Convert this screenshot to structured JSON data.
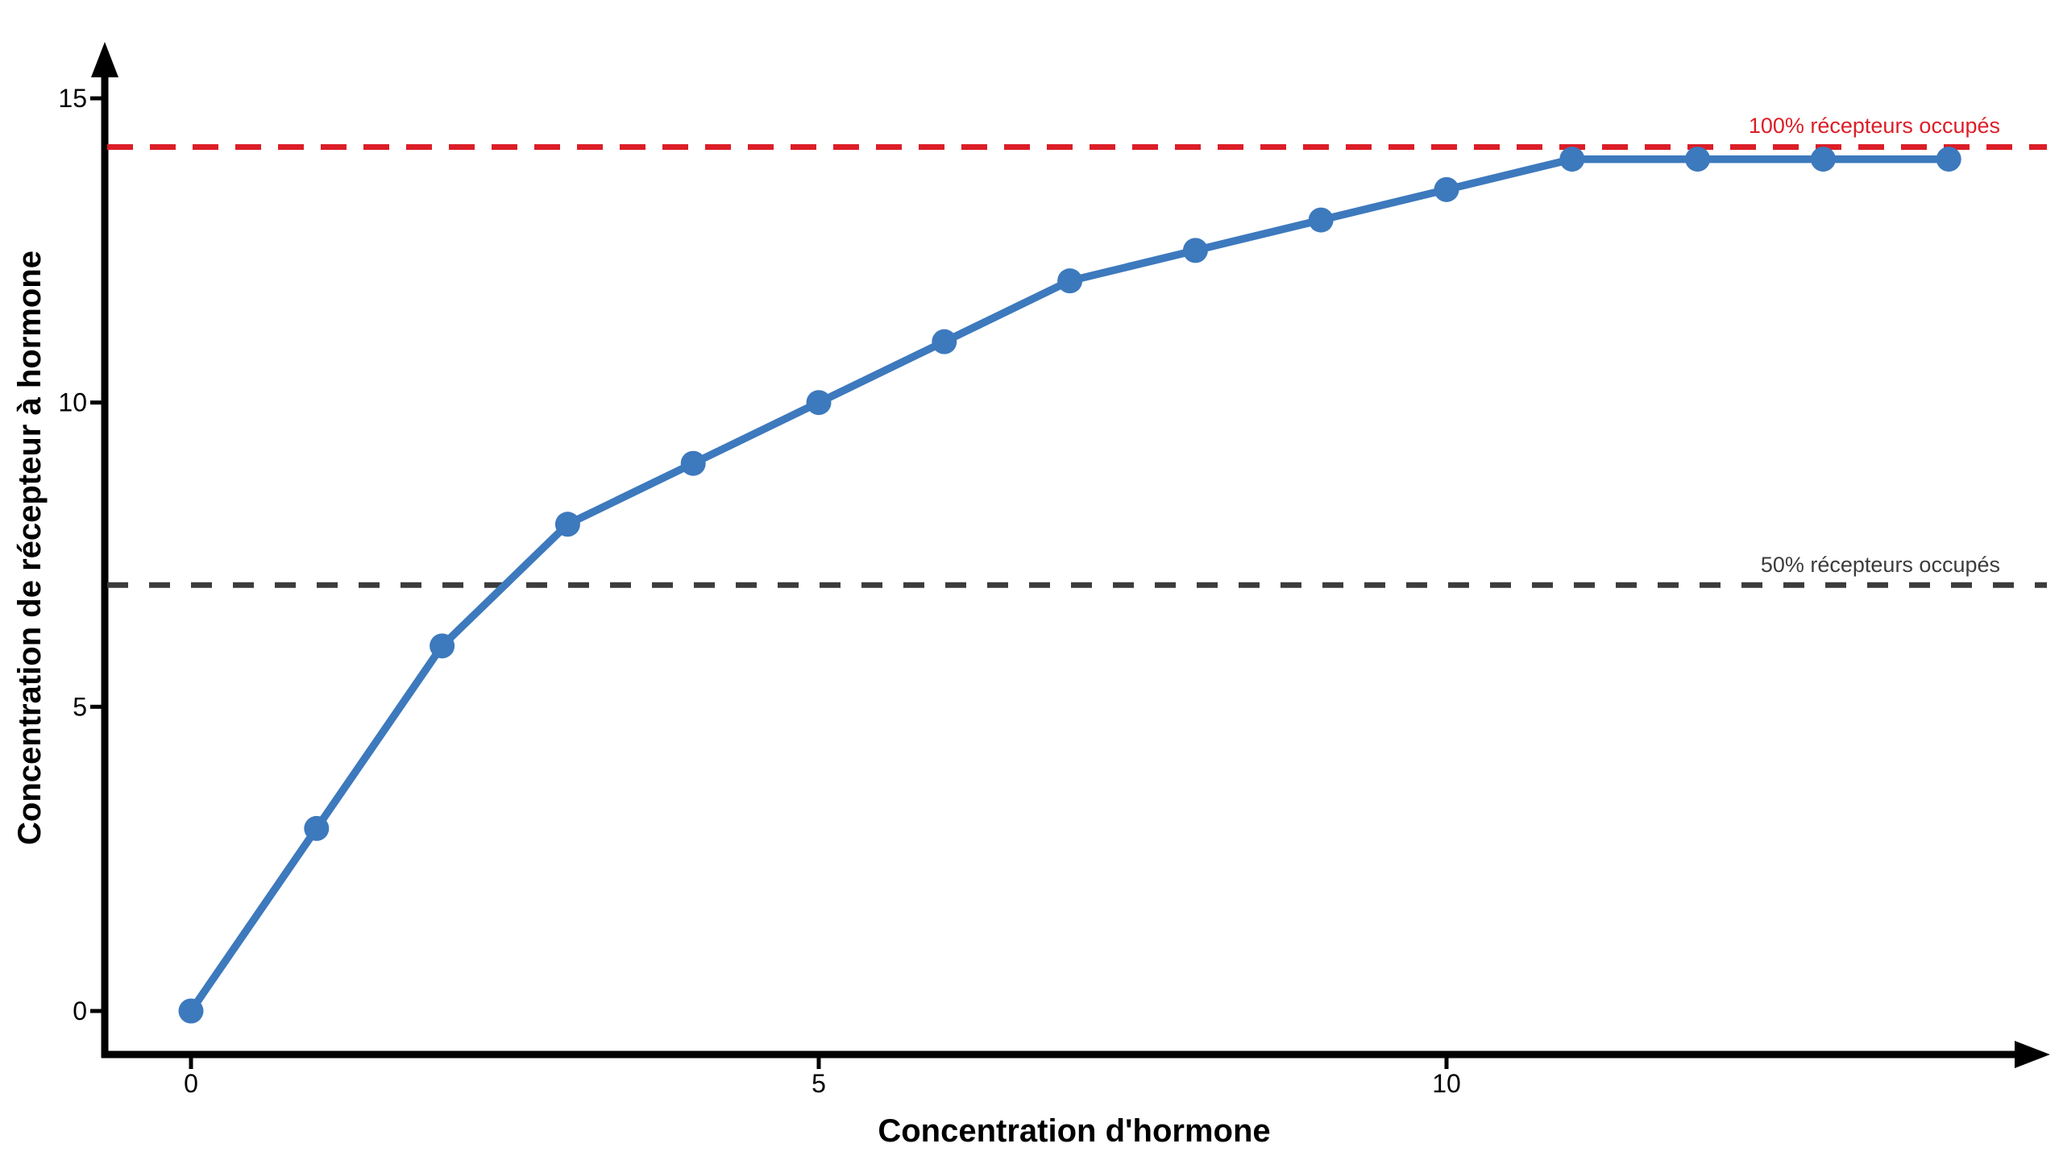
{
  "chart_data": {
    "type": "line",
    "title": "",
    "xlabel": "Concentration d'hormone",
    "ylabel": "Concentration de récepteur à hormone",
    "x": [
      0,
      1,
      2,
      3,
      4,
      5,
      6,
      7,
      8,
      9,
      10,
      11,
      12,
      13,
      14
    ],
    "values": [
      0,
      3,
      6,
      8,
      9,
      10,
      11,
      12,
      12.5,
      13,
      13.5,
      14,
      14,
      14,
      14
    ],
    "x_ticks": [
      "0",
      "5",
      "10"
    ],
    "x_tick_values": [
      0,
      5,
      10
    ],
    "y_ticks": [
      "0",
      "5",
      "10",
      "15"
    ],
    "y_tick_values": [
      0,
      5,
      10,
      15
    ],
    "xlim": [
      -0.75,
      14.8
    ],
    "ylim": [
      -0.7,
      15.8
    ],
    "grid": false,
    "legend": false,
    "line_color": "#3D79BD",
    "marker": "circle",
    "axis_color": "#000000",
    "annotations": [
      {
        "label": "100% récepteurs occupés",
        "y": 14.2,
        "color": "#DC1E27",
        "style": "dashed"
      },
      {
        "label": "50% récepteurs occupés",
        "y": 7,
        "color": "#3C3C3C",
        "style": "dashed"
      }
    ]
  }
}
